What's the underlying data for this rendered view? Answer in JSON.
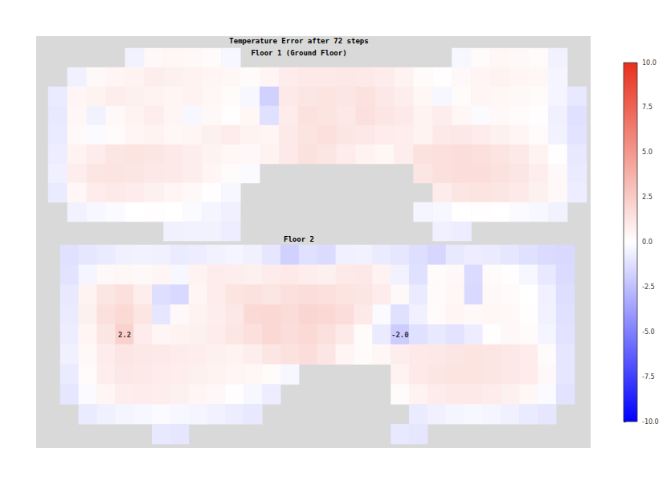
{
  "chart_data": {
    "type": "heatmap",
    "title": "Temperature Error after 72 steps",
    "panels": [
      {
        "title": "Floor 1 (Ground Floor)",
        "cells": [
          [
            null,
            null,
            null,
            null,
            -0.5,
            0.3,
            0.4,
            0.3,
            0.2,
            -0.3,
            null,
            null,
            null,
            null,
            null,
            null,
            null,
            null,
            null,
            null,
            null,
            -0.3,
            0.2,
            0.4,
            0.3,
            0.2,
            -0.5,
            null
          ],
          [
            null,
            -0.6,
            0.3,
            0.5,
            0.6,
            0.8,
            0.7,
            0.6,
            0.5,
            0.4,
            0.2,
            0.5,
            0.9,
            1.0,
            1.0,
            1.1,
            1.0,
            0.9,
            0.6,
            0.2,
            0.1,
            0.3,
            0.5,
            0.6,
            0.5,
            0.4,
            -0.4,
            null
          ],
          [
            -0.8,
            0.5,
            0.6,
            0.8,
            0.7,
            0.6,
            0.5,
            0.6,
            0.4,
            0.2,
            -0.3,
            -1.8,
            1.0,
            1.2,
            1.3,
            1.2,
            1.4,
            1.1,
            0.8,
            0.4,
            -0.3,
            0.2,
            0.5,
            0.4,
            0.3,
            0.2,
            -0.4,
            -0.9
          ],
          [
            -0.9,
            0.4,
            -0.5,
            0.3,
            0.6,
            0.8,
            0.5,
            -0.3,
            0.3,
            0.1,
            0.4,
            -1.2,
            0.9,
            1.4,
            1.3,
            1.1,
            1.5,
            1.2,
            1.0,
            0.6,
            0.8,
            0.4,
            -0.2,
            0.3,
            0.2,
            0.1,
            -0.6,
            -1.2
          ],
          [
            -0.8,
            0.3,
            -0.2,
            0.2,
            0.5,
            0.6,
            0.4,
            0.5,
            0.7,
            0.9,
            0.6,
            0.5,
            1.0,
            1.3,
            1.5,
            1.2,
            1.1,
            0.9,
            0.8,
            0.6,
            1.0,
            1.1,
            0.9,
            0.7,
            0.5,
            0.2,
            -0.5,
            -1.1
          ],
          [
            -0.7,
            0.6,
            0.9,
            1.2,
            1.3,
            1.2,
            1.0,
            0.8,
            0.6,
            0.4,
            0.3,
            0.6,
            1.0,
            1.4,
            1.2,
            0.9,
            0.6,
            0.4,
            0.8,
            1.4,
            1.5,
            1.6,
            1.5,
            1.3,
            1.0,
            0.6,
            0.1,
            -0.9
          ],
          [
            -0.6,
            0.8,
            1.2,
            1.3,
            1.2,
            1.1,
            1.0,
            0.8,
            0.5,
            0.2,
            -0.2,
            null,
            null,
            null,
            null,
            null,
            null,
            null,
            null,
            1.2,
            1.5,
            1.6,
            1.6,
            1.4,
            1.2,
            0.8,
            0.3,
            -0.8
          ],
          [
            -0.8,
            0.4,
            0.9,
            1.0,
            0.9,
            0.7,
            0.5,
            0.3,
            0.1,
            -0.3,
            null,
            null,
            null,
            null,
            null,
            null,
            null,
            null,
            null,
            null,
            0.9,
            1.2,
            1.3,
            1.2,
            1.0,
            0.7,
            0.3,
            -0.7
          ],
          [
            null,
            -0.5,
            -0.3,
            -0.2,
            0.0,
            0.1,
            0.0,
            -0.2,
            -0.4,
            -0.6,
            null,
            null,
            null,
            null,
            null,
            null,
            null,
            null,
            null,
            -0.4,
            -0.3,
            0.0,
            0.1,
            0.0,
            -0.2,
            -0.3,
            -0.5,
            null
          ],
          [
            null,
            null,
            null,
            null,
            null,
            null,
            -0.6,
            -0.5,
            -0.5,
            -0.7,
            null,
            null,
            null,
            null,
            null,
            null,
            null,
            null,
            null,
            null,
            -0.6,
            -0.7,
            null,
            null,
            null,
            null,
            null,
            null
          ]
        ]
      },
      {
        "title": "Floor 2",
        "cells": [
          [
            -1.2,
            -1.0,
            -0.8,
            -0.6,
            -0.5,
            -0.6,
            -0.8,
            -0.7,
            -0.5,
            -0.4,
            -0.6,
            -1.0,
            -1.8,
            -1.2,
            -1.4,
            -0.6,
            -0.5,
            -0.8,
            -1.0,
            -1.3,
            -1.6,
            -0.9,
            -0.7,
            -0.8,
            -1.0,
            -1.2,
            -1.4,
            -1.5
          ],
          [
            -1.1,
            -0.4,
            0.3,
            0.4,
            0.3,
            0.5,
            -0.3,
            0.6,
            0.9,
            0.8,
            0.7,
            0.9,
            1.0,
            0.8,
            0.7,
            1.0,
            1.1,
            0.6,
            -0.5,
            -1.2,
            0.2,
            0.3,
            -1.4,
            0.2,
            0.1,
            -0.3,
            -0.9,
            -1.4
          ],
          [
            -0.9,
            0.6,
            1.2,
            1.5,
            0.8,
            -1.3,
            -1.5,
            0.5,
            0.9,
            1.3,
            1.4,
            1.2,
            1.5,
            1.6,
            1.5,
            1.3,
            1.2,
            0.9,
            0.3,
            -0.8,
            0.2,
            0.4,
            -1.5,
            0.3,
            0.2,
            0.0,
            -0.6,
            -1.3
          ],
          [
            -0.8,
            0.7,
            1.5,
            1.8,
            1.2,
            -1.0,
            0.3,
            0.6,
            0.8,
            1.1,
            1.8,
            1.9,
            1.7,
            2.0,
            1.9,
            1.6,
            1.0,
            -0.2,
            -1.2,
            -0.6,
            0.2,
            0.5,
            0.3,
            0.4,
            0.3,
            0.1,
            -0.5,
            -1.2
          ],
          [
            -0.7,
            0.5,
            1.2,
            2.2,
            0.9,
            0.5,
            0.6,
            0.7,
            0.9,
            1.2,
            1.5,
            1.9,
            1.6,
            1.8,
            1.5,
            1.0,
            0.2,
            -0.8,
            -2.0,
            -1.2,
            -0.9,
            -1.1,
            -0.7,
            0.1,
            0.3,
            0.2,
            -0.4,
            -1.1
          ],
          [
            -0.6,
            0.3,
            0.9,
            1.2,
            1.1,
            1.0,
            0.9,
            0.8,
            0.7,
            0.6,
            0.8,
            1.2,
            1.4,
            1.6,
            1.2,
            0.5,
            0.2,
            0.4,
            0.8,
            1.0,
            1.1,
            1.2,
            1.3,
            1.2,
            1.1,
            0.9,
            0.2,
            -1.0
          ],
          [
            -0.8,
            0.2,
            0.8,
            1.1,
            1.0,
            0.9,
            0.8,
            0.7,
            0.6,
            0.5,
            0.4,
            0.2,
            -0.3,
            null,
            null,
            null,
            null,
            null,
            0.6,
            1.0,
            1.2,
            1.3,
            1.3,
            1.2,
            1.1,
            0.9,
            0.3,
            -1.0
          ],
          [
            -1.0,
            -0.2,
            0.5,
            0.8,
            0.9,
            0.8,
            0.7,
            0.5,
            0.3,
            0.1,
            -0.3,
            -0.7,
            null,
            null,
            null,
            null,
            null,
            null,
            0.2,
            0.6,
            0.9,
            1.0,
            1.0,
            0.9,
            0.7,
            0.4,
            -0.2,
            -1.1
          ],
          [
            null,
            -0.8,
            -0.6,
            -0.4,
            -0.3,
            -0.2,
            -0.3,
            -0.4,
            -0.5,
            -0.7,
            -0.9,
            null,
            null,
            null,
            null,
            null,
            null,
            null,
            null,
            -0.8,
            -0.6,
            -0.4,
            -0.3,
            -0.4,
            -0.6,
            -0.8,
            -1.0,
            null
          ],
          [
            null,
            null,
            null,
            null,
            null,
            -0.9,
            -1.0,
            null,
            null,
            null,
            null,
            null,
            null,
            null,
            null,
            null,
            null,
            null,
            -0.9,
            -1.0,
            null,
            null,
            null,
            null,
            null,
            null,
            null,
            null
          ]
        ],
        "annotations": [
          {
            "row": 4,
            "col": 3,
            "value": 2.2
          },
          {
            "row": 4,
            "col": 18,
            "value": -2,
            "label": "-2.0"
          }
        ]
      }
    ],
    "colorbar": {
      "range": [
        -10,
        10
      ],
      "ticks": [
        {
          "value": -10,
          "label": "-10.0"
        },
        -7.5,
        {
          "value": -5,
          "label": "-5.0"
        },
        -2.5,
        {
          "value": 0,
          "label": "0.0"
        },
        2.5,
        {
          "value": 5,
          "label": "5.0"
        },
        7.5,
        {
          "value": 10,
          "label": "10.0"
        }
      ]
    }
  }
}
